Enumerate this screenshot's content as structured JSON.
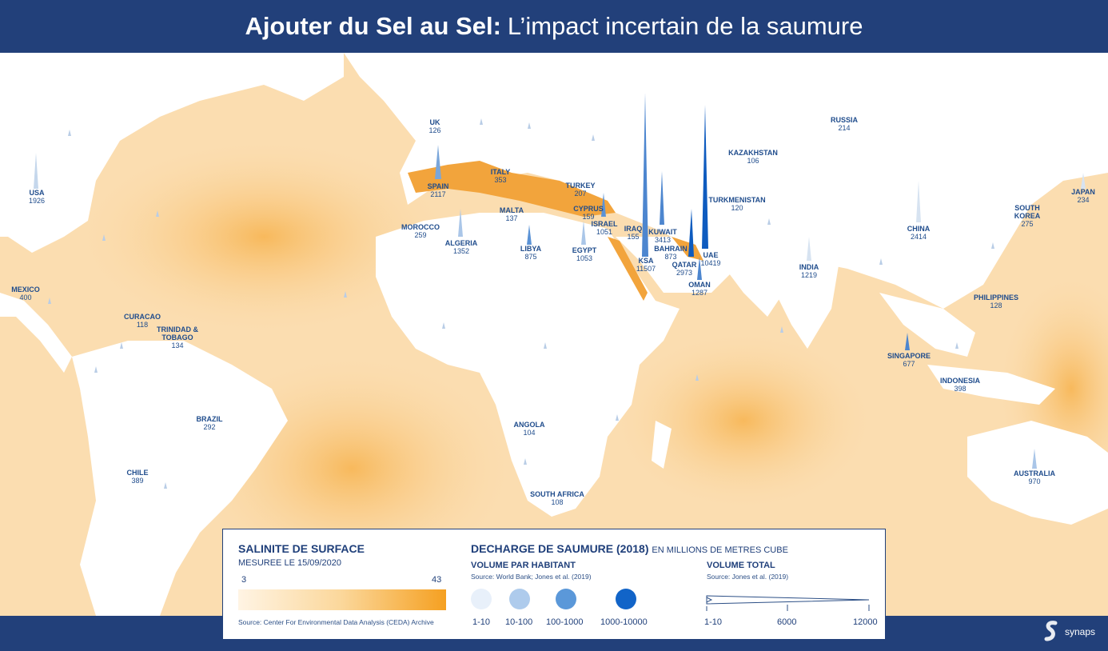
{
  "header": {
    "title_bold": "Ajouter du Sel au Sel:",
    "title_rest": "L’impact incertain de la saumure"
  },
  "countries": [
    {
      "name": "USA",
      "value": "1926"
    },
    {
      "name": "UK",
      "value": "126"
    },
    {
      "name": "SPAIN",
      "value": "2117"
    },
    {
      "name": "ITALY",
      "value": "353"
    },
    {
      "name": "TURKEY",
      "value": "207"
    },
    {
      "name": "MALTA",
      "value": "137"
    },
    {
      "name": "CYPRUS",
      "value": "159"
    },
    {
      "name": "ISRAEL",
      "value": "1051"
    },
    {
      "name": "MOROCCO",
      "value": "259"
    },
    {
      "name": "ALGERIA",
      "value": "1352"
    },
    {
      "name": "LIBYA",
      "value": "875"
    },
    {
      "name": "EGYPT",
      "value": "1053"
    },
    {
      "name": "IRAQ",
      "value": "155"
    },
    {
      "name": "KSA",
      "value": "11507"
    },
    {
      "name": "KUWAIT",
      "value": "3413"
    },
    {
      "name": "BAHRAIN",
      "value": "873"
    },
    {
      "name": "QATAR",
      "value": "2973"
    },
    {
      "name": "UAE",
      "value": "10419"
    },
    {
      "name": "OMAN",
      "value": "1287"
    },
    {
      "name": "RUSSIA",
      "value": "214"
    },
    {
      "name": "KAZAKHSTAN",
      "value": "106"
    },
    {
      "name": "TURKMENISTAN",
      "value": "120"
    },
    {
      "name": "INDIA",
      "value": "1219"
    },
    {
      "name": "CHINA",
      "value": "2414"
    },
    {
      "name": "SOUTH KOREA",
      "value": "275"
    },
    {
      "name": "JAPAN",
      "value": "234"
    },
    {
      "name": "PHILIPPINES",
      "value": "128"
    },
    {
      "name": "SINGAPORE",
      "value": "677"
    },
    {
      "name": "INDONESIA",
      "value": "398"
    },
    {
      "name": "AUSTRALIA",
      "value": "970"
    },
    {
      "name": "MEXICO",
      "value": "400"
    },
    {
      "name": "CURACAO",
      "value": "118"
    },
    {
      "name": "TRINIDAD & TOBAGO",
      "value": "134"
    },
    {
      "name": "BRAZIL",
      "value": "292"
    },
    {
      "name": "CHILE",
      "value": "389"
    },
    {
      "name": "ANGOLA",
      "value": "104"
    },
    {
      "name": "SOUTH AFRICA",
      "value": "108"
    }
  ],
  "legend": {
    "salinity_title": "SALINITE DE SURFACE",
    "salinity_date": "MESUREE LE 15/09/2020",
    "salinity_min": "3",
    "salinity_max": "43",
    "salinity_source": "Source: Center For Environmental Data Analysis (CEDA) Archive",
    "brine_title": "DECHARGE DE SAUMURE (2018)",
    "brine_unit": "EN MILLIONS DE METRES CUBE",
    "per_capita_title": "VOLUME PAR HABITANT",
    "per_capita_source": "Source: World Bank; Jones et al. (2019)",
    "per_capita_classes": [
      "1-10",
      "10-100",
      "100-1000",
      "1000-10000"
    ],
    "per_capita_colors": [
      "#e8f0fa",
      "#aecbec",
      "#5b98d9",
      "#1164c8"
    ],
    "total_title": "VOLUME TOTAL",
    "total_source": "Source: Jones et al. (2019)",
    "total_ticks": [
      "1-10",
      "6000",
      "12000"
    ]
  },
  "brand": {
    "name": "synaps"
  }
}
